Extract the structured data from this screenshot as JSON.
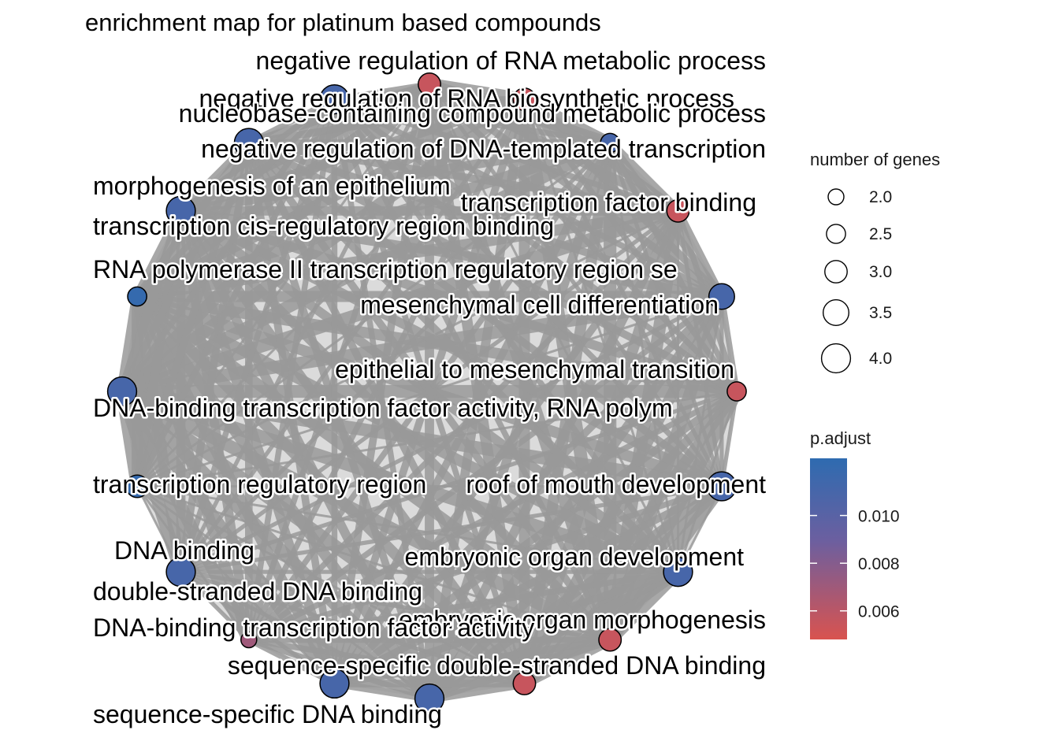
{
  "title": "enrichment map for platinum based compounds",
  "nodes": [
    {
      "label": "negative regulation of RNA metabolic process",
      "size": 3.0,
      "p_adjust": 0.0055
    },
    {
      "label": "negative regulation of RNA biosynthetic process",
      "size": 3.0,
      "p_adjust": 0.0055
    },
    {
      "label": "nucleobase-containing compound metabolic process",
      "size": 2.5,
      "p_adjust": 0.011
    },
    {
      "label": "negative regulation of DNA-templated transcription",
      "size": 3.0,
      "p_adjust": 0.0055
    },
    {
      "label": "morphogenesis of an epithelium",
      "size": 3.5,
      "p_adjust": 0.011
    },
    {
      "label": "transcription factor binding",
      "size": 2.5,
      "p_adjust": 0.0055
    },
    {
      "label": "transcription cis-regulatory region binding",
      "size": 4.0,
      "p_adjust": 0.011
    },
    {
      "label": "RNA polymerase II transcription regulatory region se",
      "size": 4.0,
      "p_adjust": 0.011
    },
    {
      "label": "mesenchymal cell differentiation",
      "size": 3.0,
      "p_adjust": 0.0055
    },
    {
      "label": "epithelial to mesenchymal transition",
      "size": 3.0,
      "p_adjust": 0.0055
    },
    {
      "label": "DNA-binding transcription factor activity, RNA polym",
      "size": 4.0,
      "p_adjust": 0.011
    },
    {
      "label": "transcription regulatory region",
      "size": 4.0,
      "p_adjust": 0.011
    },
    {
      "label": "roof of mouth development",
      "size": 2.0,
      "p_adjust": 0.007
    },
    {
      "label": "DNA binding",
      "size": 4.0,
      "p_adjust": 0.011
    },
    {
      "label": "embryonic organ development",
      "size": 3.0,
      "p_adjust": 0.012
    },
    {
      "label": "double-stranded DNA binding",
      "size": 4.0,
      "p_adjust": 0.011
    },
    {
      "label": "embryonic organ morphogenesis",
      "size": 2.5,
      "p_adjust": 0.012
    },
    {
      "label": "DNA-binding transcription factor activity",
      "size": 4.0,
      "p_adjust": 0.011
    },
    {
      "label": "sequence-specific double-stranded DNA binding",
      "size": 4.0,
      "p_adjust": 0.011
    },
    {
      "label": "sequence-specific DNA binding",
      "size": 4.0,
      "p_adjust": 0.011
    }
  ],
  "legend_size": {
    "title": "number of genes",
    "values": [
      2.0,
      2.5,
      3.0,
      3.5,
      4.0
    ],
    "labels": [
      "2.0",
      "2.5",
      "3.0",
      "3.5",
      "4.0"
    ]
  },
  "legend_color": {
    "title": "p.adjust",
    "low_color": "#D9534F",
    "mid_color": "#6B5FA0",
    "high_color": "#2E6BB0",
    "range": [
      0.0048,
      0.0124
    ],
    "ticks": [
      0.006,
      0.008,
      0.01
    ],
    "tick_labels": [
      "0.006",
      "0.008",
      "0.010"
    ]
  },
  "colors": {
    "edge": "#999999",
    "node_stroke": "#000000"
  }
}
